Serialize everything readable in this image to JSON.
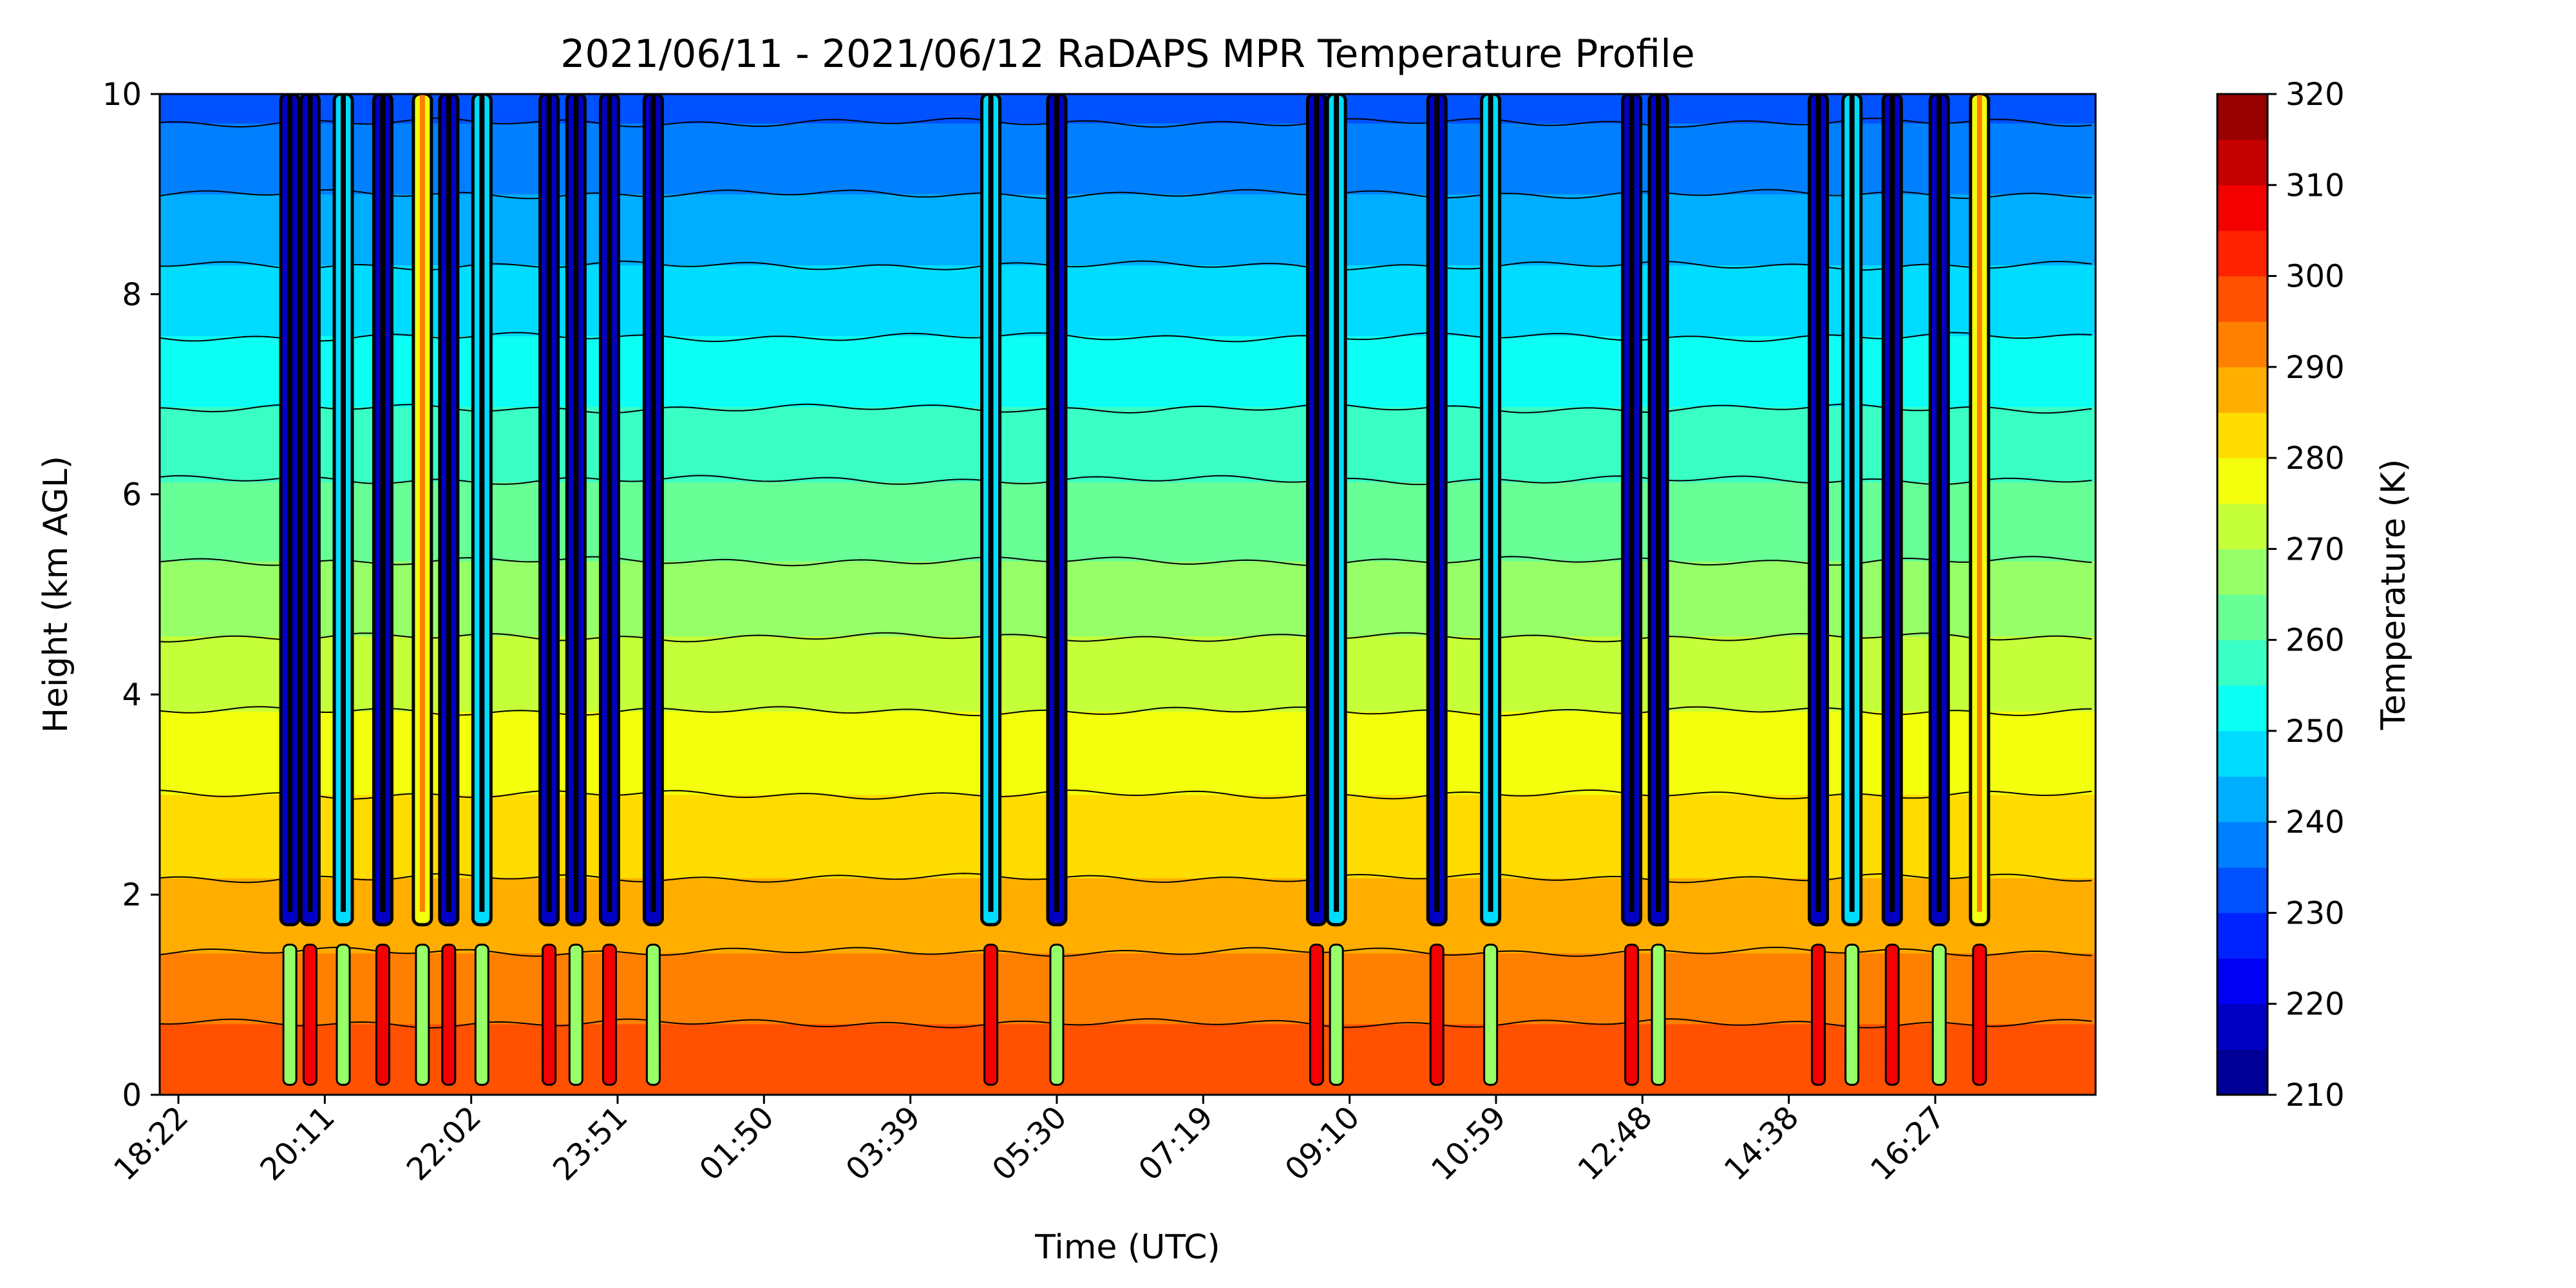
{
  "chart_data": {
    "type": "heatmap",
    "subtype": "filled-contour",
    "title": "2021/06/11 - 2021/06/12 RaDAPS MPR Temperature Profile",
    "xlabel": "Time (UTC)",
    "ylabel": "Height (km AGL)",
    "colorbar_label": "Temperature (K)",
    "colormap": "jet",
    "x_ticks": [
      "18:22",
      "20:11",
      "22:02",
      "23:51",
      "01:50",
      "03:39",
      "05:30",
      "07:19",
      "09:10",
      "10:59",
      "12:48",
      "14:38",
      "16:27"
    ],
    "y_ticks": [
      0,
      2,
      4,
      6,
      8,
      10
    ],
    "ylim": [
      0,
      10
    ],
    "colorbar_ticks": [
      210,
      220,
      230,
      240,
      250,
      260,
      270,
      280,
      290,
      300,
      310,
      320
    ],
    "zlim": [
      210,
      320
    ],
    "contour_interval": 5,
    "background_profile": {
      "height_km": [
        0,
        1,
        2,
        3,
        4,
        5,
        6,
        7,
        8,
        9,
        10
      ],
      "temperature_K": [
        300,
        293,
        286,
        280,
        274,
        267,
        261,
        254,
        247,
        240,
        233
      ]
    },
    "disturbance_columns": [
      {
        "time": "19:45",
        "type": "cold",
        "top_km": 10
      },
      {
        "time": "20:00",
        "type": "cold",
        "top_km": 10
      },
      {
        "time": "20:25",
        "type": "mixed",
        "top_km": 10
      },
      {
        "time": "20:55",
        "type": "cold",
        "top_km": 10
      },
      {
        "time": "21:25",
        "type": "warm",
        "top_km": 10
      },
      {
        "time": "21:45",
        "type": "cold",
        "top_km": 10
      },
      {
        "time": "22:10",
        "type": "mixed",
        "top_km": 10
      },
      {
        "time": "23:00",
        "type": "cold",
        "top_km": 10
      },
      {
        "time": "23:20",
        "type": "cold",
        "top_km": 10
      },
      {
        "time": "23:45",
        "type": "cold",
        "top_km": 10
      },
      {
        "time": "00:20",
        "type": "cold",
        "top_km": 10
      },
      {
        "time": "04:40",
        "type": "mixed",
        "top_km": 10
      },
      {
        "time": "05:30",
        "type": "cold",
        "top_km": 10
      },
      {
        "time": "08:45",
        "type": "cold",
        "top_km": 10
      },
      {
        "time": "09:00",
        "type": "mixed",
        "top_km": 10
      },
      {
        "time": "10:15",
        "type": "cold",
        "top_km": 10
      },
      {
        "time": "10:55",
        "type": "mixed",
        "top_km": 10
      },
      {
        "time": "12:40",
        "type": "cold",
        "top_km": 10
      },
      {
        "time": "13:00",
        "type": "cold",
        "top_km": 10
      },
      {
        "time": "15:00",
        "type": "cold",
        "top_km": 10
      },
      {
        "time": "15:25",
        "type": "mixed",
        "top_km": 10
      },
      {
        "time": "15:55",
        "type": "cold",
        "top_km": 10
      },
      {
        "time": "16:30",
        "type": "cold",
        "top_km": 10
      },
      {
        "time": "17:00",
        "type": "warm",
        "top_km": 10
      }
    ]
  },
  "figure_text": {
    "title": "2021/06/11 - 2021/06/12 RaDAPS MPR Temperature Profile",
    "xlabel": "Time (UTC)",
    "ylabel": "Height (km AGL)",
    "colorbar_label": "Temperature (K)"
  }
}
